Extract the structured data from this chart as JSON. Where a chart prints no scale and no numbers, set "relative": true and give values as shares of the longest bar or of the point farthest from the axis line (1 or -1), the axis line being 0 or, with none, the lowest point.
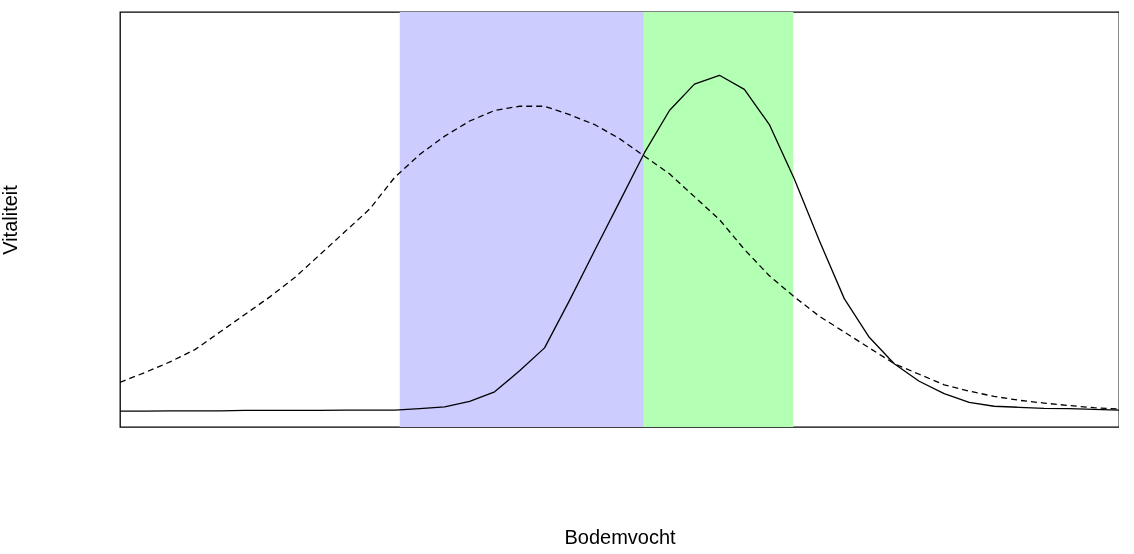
{
  "chart_data": {
    "type": "line",
    "relative": true,
    "xlabel": "Bodemvocht",
    "ylabel": "Vitaliteit",
    "tick_labels": false,
    "grid": false,
    "marker": "none",
    "categories": [
      null,
      null,
      null,
      null,
      null,
      null,
      null,
      null,
      null,
      null,
      null,
      null,
      null,
      null,
      null,
      null,
      null,
      null,
      null,
      null,
      null,
      null,
      null,
      null,
      null,
      null,
      null,
      null,
      null,
      null,
      null,
      null,
      null,
      null,
      null,
      null,
      null,
      null,
      null,
      null,
      null
    ],
    "series": [
      {
        "color": "#000000",
        "line_style": "solid",
        "values": [
          0.045,
          0.045,
          0.046,
          0.046,
          0.046,
          0.047,
          0.047,
          0.047,
          0.047,
          0.048,
          0.048,
          0.048,
          0.052,
          0.057,
          0.073,
          0.1,
          0.16,
          0.225,
          0.36,
          0.501,
          0.64,
          0.78,
          0.9,
          0.975,
          1.0,
          0.96,
          0.86,
          0.705,
          0.53,
          0.365,
          0.255,
          0.18,
          0.13,
          0.095,
          0.07,
          0.059,
          0.056,
          0.053,
          0.052,
          0.05,
          0.048
        ]
      },
      {
        "color": "#000000",
        "line_style": "dashed",
        "values": [
          0.127,
          0.155,
          0.185,
          0.22,
          0.27,
          0.32,
          0.37,
          0.425,
          0.49,
          0.555,
          0.62,
          0.71,
          0.775,
          0.827,
          0.87,
          0.9,
          0.912,
          0.912,
          0.888,
          0.86,
          0.82,
          0.77,
          0.72,
          0.655,
          0.59,
          0.505,
          0.43,
          0.37,
          0.315,
          0.27,
          0.225,
          0.18,
          0.15,
          0.12,
          0.102,
          0.087,
          0.076,
          0.068,
          0.061,
          0.055,
          0.051
        ]
      }
    ]
  }
}
